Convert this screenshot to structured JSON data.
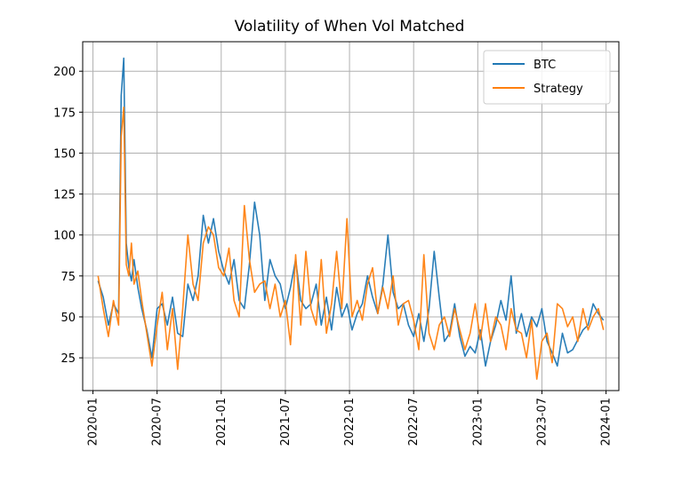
{
  "chart_data": {
    "type": "line",
    "title": "Volatility of When Vol Matched",
    "xlabel": "",
    "ylabel": "",
    "x_ticks": [
      "2020-01",
      "2020-07",
      "2021-01",
      "2021-07",
      "2022-01",
      "2022-07",
      "2023-01",
      "2023-07",
      "2024-01"
    ],
    "y_ticks": [
      25,
      50,
      75,
      100,
      125,
      150,
      175,
      200
    ],
    "xlim": [
      2019.92,
      2024.1
    ],
    "ylim": [
      5,
      218
    ],
    "grid": true,
    "legend_position": "top-right",
    "series": [
      {
        "name": "BTC",
        "color": "#1f77b4",
        "x": [
          2020.04,
          2020.08,
          2020.12,
          2020.16,
          2020.2,
          2020.22,
          2020.24,
          2020.26,
          2020.28,
          2020.3,
          2020.32,
          2020.35,
          2020.38,
          2020.42,
          2020.46,
          2020.5,
          2020.54,
          2020.58,
          2020.62,
          2020.66,
          2020.7,
          2020.74,
          2020.78,
          2020.82,
          2020.86,
          2020.9,
          2020.94,
          2020.98,
          2021.02,
          2021.06,
          2021.1,
          2021.14,
          2021.18,
          2021.22,
          2021.26,
          2021.3,
          2021.34,
          2021.38,
          2021.42,
          2021.46,
          2021.5,
          2021.54,
          2021.58,
          2021.62,
          2021.66,
          2021.7,
          2021.74,
          2021.78,
          2021.82,
          2021.86,
          2021.9,
          2021.94,
          2021.98,
          2022.02,
          2022.06,
          2022.1,
          2022.14,
          2022.18,
          2022.22,
          2022.26,
          2022.3,
          2022.34,
          2022.38,
          2022.42,
          2022.46,
          2022.5,
          2022.54,
          2022.58,
          2022.62,
          2022.66,
          2022.7,
          2022.74,
          2022.78,
          2022.82,
          2022.86,
          2022.9,
          2022.94,
          2022.98,
          2023.02,
          2023.06,
          2023.1,
          2023.14,
          2023.18,
          2023.22,
          2023.26,
          2023.3,
          2023.34,
          2023.38,
          2023.42,
          2023.46,
          2023.5,
          2023.54,
          2023.58,
          2023.62,
          2023.66,
          2023.7,
          2023.74,
          2023.78,
          2023.82,
          2023.86,
          2023.9,
          2023.94,
          2023.98
        ],
        "values": [
          72,
          62,
          45,
          58,
          52,
          185,
          208,
          95,
          80,
          72,
          85,
          68,
          55,
          42,
          25,
          55,
          58,
          45,
          62,
          40,
          38,
          70,
          60,
          75,
          112,
          95,
          110,
          90,
          78,
          70,
          85,
          60,
          55,
          82,
          120,
          100,
          60,
          85,
          75,
          70,
          55,
          68,
          85,
          60,
          55,
          58,
          70,
          45,
          62,
          42,
          68,
          50,
          58,
          42,
          52,
          58,
          75,
          62,
          52,
          70,
          100,
          65,
          55,
          58,
          45,
          38,
          52,
          35,
          55,
          90,
          62,
          35,
          40,
          58,
          38,
          26,
          32,
          28,
          42,
          20,
          35,
          45,
          60,
          48,
          75,
          40,
          52,
          38,
          50,
          44,
          55,
          35,
          28,
          20,
          40,
          28,
          30,
          36,
          42,
          45,
          58,
          52,
          48
        ]
      },
      {
        "name": "Strategy",
        "color": "#ff7f0e",
        "x": [
          2020.04,
          2020.08,
          2020.12,
          2020.16,
          2020.2,
          2020.22,
          2020.24,
          2020.26,
          2020.28,
          2020.3,
          2020.32,
          2020.35,
          2020.38,
          2020.42,
          2020.46,
          2020.5,
          2020.54,
          2020.58,
          2020.62,
          2020.66,
          2020.7,
          2020.74,
          2020.78,
          2020.82,
          2020.86,
          2020.9,
          2020.94,
          2020.98,
          2021.02,
          2021.06,
          2021.1,
          2021.14,
          2021.18,
          2021.22,
          2021.26,
          2021.3,
          2021.34,
          2021.38,
          2021.42,
          2021.46,
          2021.5,
          2021.54,
          2021.58,
          2021.62,
          2021.66,
          2021.7,
          2021.74,
          2021.78,
          2021.82,
          2021.86,
          2021.9,
          2021.94,
          2021.98,
          2022.02,
          2022.06,
          2022.1,
          2022.14,
          2022.18,
          2022.22,
          2022.26,
          2022.3,
          2022.34,
          2022.38,
          2022.42,
          2022.46,
          2022.5,
          2022.54,
          2022.58,
          2022.62,
          2022.66,
          2022.7,
          2022.74,
          2022.78,
          2022.82,
          2022.86,
          2022.9,
          2022.94,
          2022.98,
          2023.02,
          2023.06,
          2023.1,
          2023.14,
          2023.18,
          2023.22,
          2023.26,
          2023.3,
          2023.34,
          2023.38,
          2023.42,
          2023.46,
          2023.5,
          2023.54,
          2023.58,
          2023.62,
          2023.66,
          2023.7,
          2023.74,
          2023.78,
          2023.82,
          2023.86,
          2023.9,
          2023.94,
          2023.98
        ],
        "values": [
          75,
          55,
          38,
          60,
          45,
          160,
          178,
          82,
          75,
          95,
          70,
          78,
          60,
          40,
          20,
          45,
          65,
          30,
          55,
          18,
          55,
          100,
          70,
          60,
          95,
          105,
          100,
          80,
          75,
          92,
          60,
          50,
          118,
          85,
          65,
          70,
          72,
          55,
          70,
          50,
          60,
          33,
          88,
          45,
          90,
          55,
          45,
          85,
          40,
          58,
          90,
          55,
          110,
          50,
          60,
          48,
          70,
          80,
          52,
          68,
          55,
          75,
          45,
          58,
          60,
          48,
          30,
          88,
          40,
          30,
          45,
          50,
          38,
          55,
          42,
          30,
          40,
          58,
          36,
          58,
          35,
          50,
          45,
          30,
          55,
          42,
          40,
          25,
          48,
          12,
          35,
          40,
          22,
          58,
          55,
          44,
          50,
          35,
          55,
          42,
          50,
          55,
          42
        ]
      }
    ]
  }
}
